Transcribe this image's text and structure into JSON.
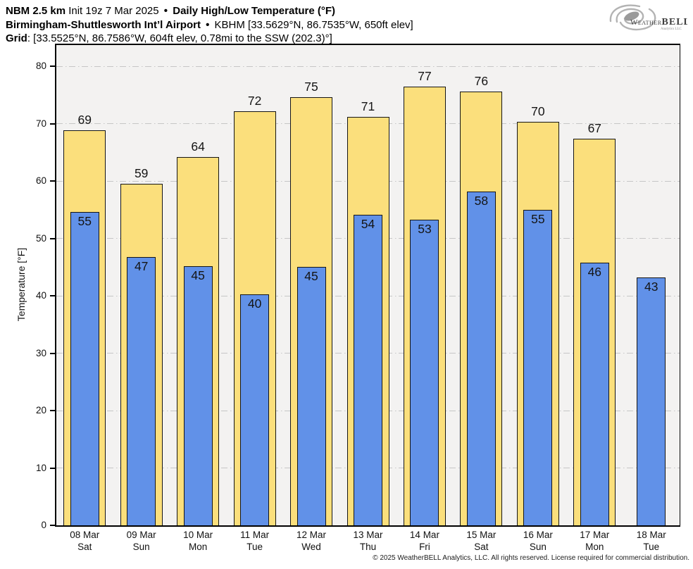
{
  "header": {
    "line1": {
      "model": "NBM 2.5 km",
      "init": "Init 19z 7 Mar 2025",
      "sep": "•",
      "product": "Daily High/Low Temperature (°F)"
    },
    "line2": {
      "station_name": "Birmingham-Shuttlesworth Int’l Airport",
      "sep": "•",
      "station_meta": "KBHM [33.5629°N, 86.7535°W, 650ft elev]"
    },
    "line3": {
      "label": "Grid",
      "value": ": [33.5525°N, 86.7586°W, 604ft elev, 0.78mi to the SSW (202.3)°]"
    }
  },
  "logo": {
    "brand_weather": "Weather",
    "brand_bell": "BELL",
    "subtext": "Analytics LLC"
  },
  "chart_data": {
    "type": "bar",
    "title": "NBM 2.5 km Daily High/Low Temperature (°F) — Birmingham-Shuttlesworth Int’l Airport (KBHM)",
    "xlabel": "",
    "ylabel": "Temperature [°F]",
    "ylim": [
      0,
      83.7
    ],
    "yticks": [
      0,
      10,
      20,
      30,
      40,
      50,
      60,
      70,
      80
    ],
    "grid": "horizontal dash-dot",
    "legend_position": "none",
    "categories_date": [
      "08 Mar",
      "09 Mar",
      "10 Mar",
      "11 Mar",
      "12 Mar",
      "13 Mar",
      "14 Mar",
      "15 Mar",
      "16 Mar",
      "17 Mar",
      "18 Mar"
    ],
    "categories_day": [
      "Sat",
      "Sun",
      "Mon",
      "Tue",
      "Wed",
      "Thu",
      "Fri",
      "Sat",
      "Sun",
      "Mon",
      "Tue"
    ],
    "series": [
      {
        "name": "Daily High",
        "color": "#fbdf7c",
        "labels": [
          69,
          59,
          64,
          72,
          75,
          71,
          77,
          76,
          70,
          67,
          null
        ],
        "values": [
          68.8,
          59.5,
          64.2,
          72.2,
          74.6,
          71.2,
          76.5,
          75.6,
          70.3,
          67.4,
          null
        ]
      },
      {
        "name": "Daily Low",
        "color": "#6191e8",
        "labels": [
          55,
          47,
          45,
          40,
          45,
          54,
          53,
          58,
          55,
          46,
          43
        ],
        "values": [
          54.6,
          46.8,
          45.2,
          40.3,
          45.1,
          54.1,
          53.3,
          58.2,
          55.0,
          45.8,
          43.2
        ]
      }
    ],
    "colors": {
      "plot_background": "#f3f2f1",
      "grid_line": "#c6c6c6",
      "bar_outline": "#151515",
      "axis": "#000000"
    }
  },
  "footer": {
    "copyright": "© 2025 WeatherBELL Analytics, LLC. All rights reserved. License required for commercial distribution."
  }
}
